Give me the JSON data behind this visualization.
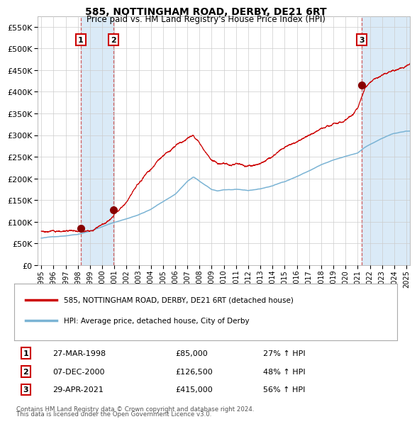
{
  "title": "585, NOTTINGHAM ROAD, DERBY, DE21 6RT",
  "subtitle": "Price paid vs. HM Land Registry's House Price Index (HPI)",
  "footnote1": "Contains HM Land Registry data © Crown copyright and database right 2024.",
  "footnote2": "This data is licensed under the Open Government Licence v3.0.",
  "legend_line1": "585, NOTTINGHAM ROAD, DERBY, DE21 6RT (detached house)",
  "legend_line2": "HPI: Average price, detached house, City of Derby",
  "transactions": [
    {
      "num": 1,
      "date": "27-MAR-1998",
      "price": "£85,000",
      "pct": "27% ↑ HPI",
      "year": 1998.22,
      "val": 85000
    },
    {
      "num": 2,
      "date": "07-DEC-2000",
      "price": "£126,500",
      "pct": "48% ↑ HPI",
      "year": 2000.93,
      "val": 126500
    },
    {
      "num": 3,
      "date": "29-APR-2021",
      "price": "£415,000",
      "pct": "56% ↑ HPI",
      "year": 2021.32,
      "val": 415000
    }
  ],
  "hpi_color": "#7ab3d4",
  "price_color": "#cc0000",
  "marker_color": "#880000",
  "shade_color": "#daeaf7",
  "dashed_color": "#cc4444",
  "grid_color": "#cccccc",
  "bg_color": "#ffffff",
  "ylim": [
    0,
    575000
  ],
  "yticks": [
    0,
    50000,
    100000,
    150000,
    200000,
    250000,
    300000,
    350000,
    400000,
    450000,
    500000,
    550000
  ],
  "xlim_start": 1994.7,
  "xlim_end": 2025.3,
  "xticks": [
    1995,
    1996,
    1997,
    1998,
    1999,
    2000,
    2001,
    2002,
    2003,
    2004,
    2005,
    2006,
    2007,
    2008,
    2009,
    2010,
    2011,
    2012,
    2013,
    2014,
    2015,
    2016,
    2017,
    2018,
    2019,
    2020,
    2021,
    2022,
    2023,
    2024,
    2025
  ]
}
